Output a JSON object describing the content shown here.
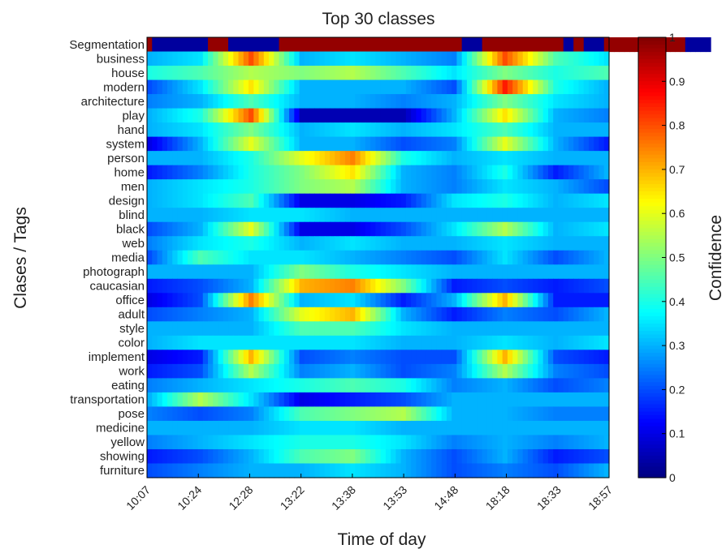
{
  "chart_data": {
    "type": "heatmap",
    "title": "Top 30 classes",
    "xlabel": "Time of day",
    "ylabel": "Clases / Tags",
    "colorbar_label": "Confidence",
    "colormap": "jet",
    "clim": [
      0,
      1
    ],
    "colorbar_ticks": [
      0,
      0.1,
      0.2,
      0.3,
      0.4,
      0.5,
      0.6,
      0.7,
      0.8,
      0.9,
      1
    ],
    "x_tick_labels": [
      "10:07",
      "10:24",
      "12:28",
      "13:22",
      "13:38",
      "13:53",
      "14:48",
      "18:18",
      "18:33",
      "18:57"
    ],
    "rows": [
      "Segmentation",
      "business",
      "house",
      "modern",
      "architecture",
      "play",
      "hand",
      "system",
      "person",
      "home",
      "men",
      "design",
      "blind",
      "black",
      "web",
      "media",
      "photograph",
      "caucasian",
      "office",
      "adult",
      "style",
      "color",
      "implement",
      "work",
      "eating",
      "transportation",
      "pose",
      "medicine",
      "yellow",
      "showing",
      "furniture"
    ],
    "columns_per_tick_interval": 10,
    "segmentation_row": [
      1,
      0,
      0,
      0,
      0,
      0,
      0,
      0,
      0,
      0,
      0,
      0,
      1,
      1,
      1,
      1,
      0,
      0,
      0,
      0,
      0,
      0,
      0,
      0,
      0,
      0,
      1,
      1,
      1,
      1,
      1,
      1,
      1,
      1,
      1,
      1,
      1,
      1,
      1,
      1,
      1,
      1,
      1,
      1,
      1,
      1,
      1,
      1,
      1,
      1,
      1,
      1,
      1,
      1,
      1,
      1,
      1,
      1,
      1,
      1,
      1,
      1,
      0,
      0,
      0,
      0,
      1,
      1,
      1,
      1,
      1,
      1,
      1,
      1,
      1,
      1,
      1,
      1,
      1,
      1,
      1,
      1,
      0,
      0,
      1,
      1,
      0,
      0,
      0,
      0,
      1,
      1,
      1,
      1,
      1,
      1,
      1,
      1,
      0,
      0,
      0,
      1,
      1,
      1,
      1,
      1,
      0,
      0,
      0,
      0,
      0
    ],
    "segments": [
      {
        "row": "business",
        "values": [
          0.3,
          0.35,
          0.8,
          0.3,
          0.35,
          0.3,
          0.25,
          0.8,
          0.45,
          0.35
        ]
      },
      {
        "row": "house",
        "values": [
          0.4,
          0.45,
          0.55,
          0.5,
          0.55,
          0.45,
          0.35,
          0.5,
          0.4,
          0.45
        ]
      },
      {
        "row": "modern",
        "values": [
          0.2,
          0.35,
          0.65,
          0.3,
          0.3,
          0.3,
          0.2,
          0.85,
          0.4,
          0.3
        ]
      },
      {
        "row": "architecture",
        "values": [
          0.25,
          0.3,
          0.45,
          0.3,
          0.3,
          0.25,
          0.3,
          0.5,
          0.35,
          0.3
        ]
      },
      {
        "row": "play",
        "values": [
          0.3,
          0.4,
          0.8,
          0.05,
          0.05,
          0.05,
          0.3,
          0.65,
          0.3,
          0.25
        ]
      },
      {
        "row": "hand",
        "values": [
          0.3,
          0.35,
          0.5,
          0.3,
          0.35,
          0.3,
          0.35,
          0.45,
          0.3,
          0.3
        ]
      },
      {
        "row": "system",
        "values": [
          0.1,
          0.3,
          0.6,
          0.3,
          0.3,
          0.2,
          0.25,
          0.6,
          0.3,
          0.15
        ]
      },
      {
        "row": "person",
        "values": [
          0.3,
          0.3,
          0.4,
          0.6,
          0.75,
          0.4,
          0.3,
          0.35,
          0.3,
          0.3
        ]
      },
      {
        "row": "home",
        "values": [
          0.15,
          0.25,
          0.4,
          0.5,
          0.65,
          0.3,
          0.25,
          0.4,
          0.15,
          0.3
        ]
      },
      {
        "row": "men",
        "values": [
          0.3,
          0.35,
          0.4,
          0.5,
          0.55,
          0.3,
          0.25,
          0.35,
          0.3,
          0.2
        ]
      },
      {
        "row": "design",
        "values": [
          0.3,
          0.35,
          0.45,
          0.1,
          0.1,
          0.15,
          0.35,
          0.4,
          0.3,
          0.35
        ]
      },
      {
        "row": "blind",
        "values": [
          0.3,
          0.3,
          0.35,
          0.35,
          0.3,
          0.3,
          0.3,
          0.3,
          0.3,
          0.3
        ]
      },
      {
        "row": "black",
        "values": [
          0.2,
          0.3,
          0.6,
          0.1,
          0.1,
          0.2,
          0.35,
          0.55,
          0.3,
          0.35
        ]
      },
      {
        "row": "web",
        "values": [
          0.25,
          0.35,
          0.4,
          0.3,
          0.35,
          0.3,
          0.3,
          0.35,
          0.3,
          0.3
        ]
      },
      {
        "row": "media",
        "values": [
          0.2,
          0.45,
          0.35,
          0.35,
          0.3,
          0.25,
          0.2,
          0.35,
          0.2,
          0.3
        ]
      },
      {
        "row": "photograph",
        "values": [
          0.3,
          0.3,
          0.3,
          0.5,
          0.4,
          0.35,
          0.3,
          0.3,
          0.3,
          0.3
        ]
      },
      {
        "row": "caucasian",
        "values": [
          0.15,
          0.2,
          0.3,
          0.7,
          0.75,
          0.5,
          0.15,
          0.2,
          0.15,
          0.2
        ]
      },
      {
        "row": "office",
        "values": [
          0.1,
          0.2,
          0.75,
          0.3,
          0.35,
          0.15,
          0.3,
          0.7,
          0.15,
          0.15
        ]
      },
      {
        "row": "adult",
        "values": [
          0.2,
          0.25,
          0.3,
          0.6,
          0.7,
          0.3,
          0.15,
          0.25,
          0.2,
          0.3
        ]
      },
      {
        "row": "style",
        "values": [
          0.3,
          0.3,
          0.3,
          0.45,
          0.45,
          0.35,
          0.3,
          0.3,
          0.3,
          0.3
        ]
      },
      {
        "row": "color",
        "values": [
          0.3,
          0.35,
          0.35,
          0.35,
          0.35,
          0.3,
          0.3,
          0.35,
          0.3,
          0.35
        ]
      },
      {
        "row": "implement",
        "values": [
          0.1,
          0.15,
          0.7,
          0.2,
          0.25,
          0.2,
          0.2,
          0.7,
          0.2,
          0.15
        ]
      },
      {
        "row": "work",
        "values": [
          0.15,
          0.2,
          0.55,
          0.25,
          0.3,
          0.2,
          0.25,
          0.55,
          0.25,
          0.2
        ]
      },
      {
        "row": "eating",
        "values": [
          0.25,
          0.3,
          0.35,
          0.4,
          0.45,
          0.4,
          0.25,
          0.3,
          0.2,
          0.25
        ]
      },
      {
        "row": "transportation",
        "values": [
          0.3,
          0.55,
          0.35,
          0.1,
          0.15,
          0.2,
          0.3,
          0.3,
          0.3,
          0.3
        ]
      },
      {
        "row": "pose",
        "values": [
          0.25,
          0.2,
          0.25,
          0.45,
          0.5,
          0.55,
          0.3,
          0.3,
          0.25,
          0.25
        ]
      },
      {
        "row": "medicine",
        "values": [
          0.3,
          0.3,
          0.3,
          0.35,
          0.35,
          0.3,
          0.3,
          0.3,
          0.3,
          0.3
        ]
      },
      {
        "row": "yellow",
        "values": [
          0.25,
          0.3,
          0.35,
          0.4,
          0.4,
          0.35,
          0.25,
          0.3,
          0.25,
          0.3
        ]
      },
      {
        "row": "showing",
        "values": [
          0.15,
          0.2,
          0.3,
          0.45,
          0.5,
          0.3,
          0.2,
          0.3,
          0.15,
          0.2
        ]
      },
      {
        "row": "furniture",
        "values": [
          0.2,
          0.25,
          0.3,
          0.3,
          0.35,
          0.3,
          0.2,
          0.25,
          0.2,
          0.3
        ]
      }
    ]
  }
}
